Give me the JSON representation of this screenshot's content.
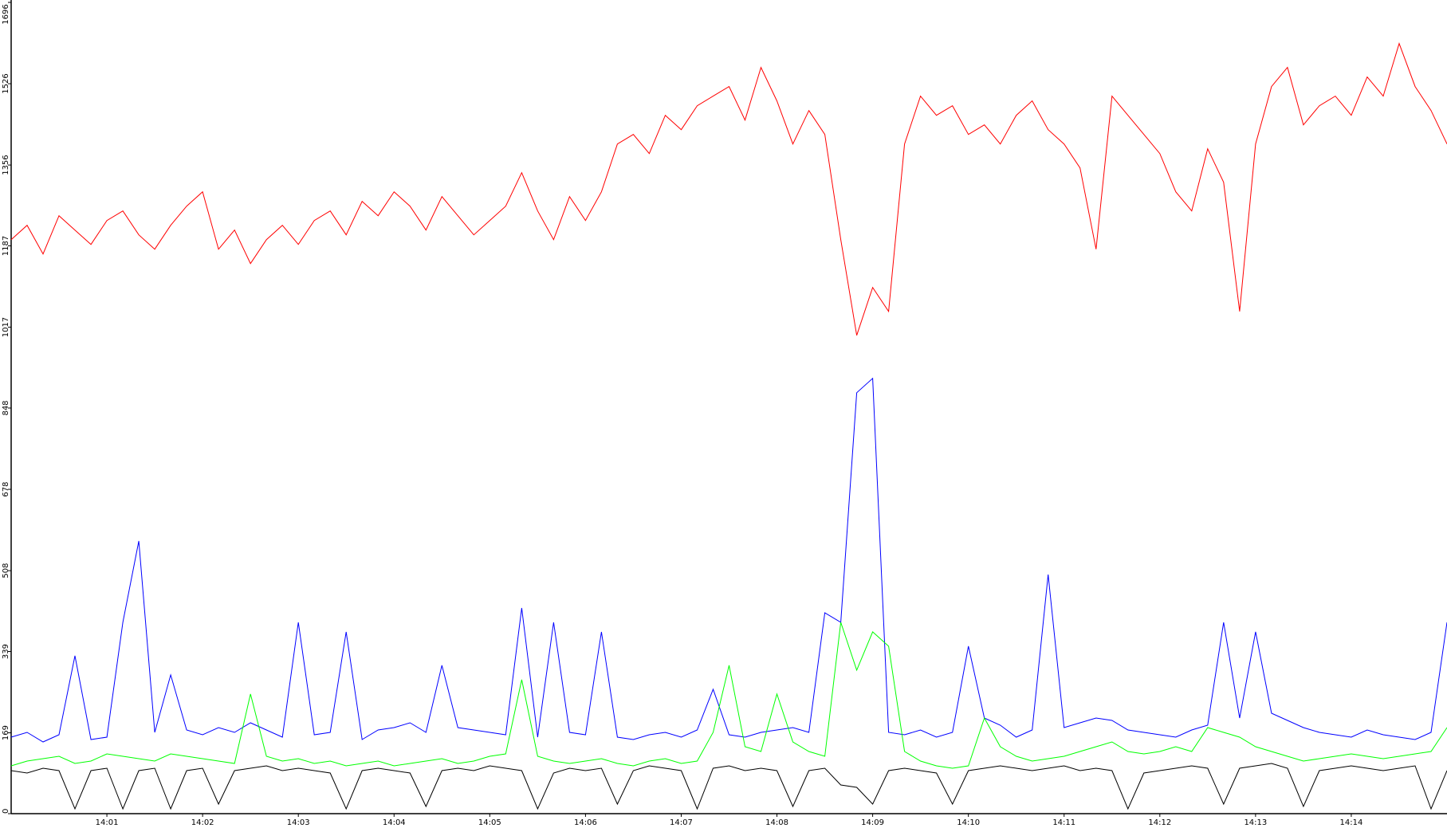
{
  "chart_data": {
    "type": "line",
    "categories": [
      null,
      null,
      null,
      null,
      null,
      null,
      "14:01",
      null,
      null,
      null,
      null,
      null,
      "14:02",
      null,
      null,
      null,
      null,
      null,
      "14:03",
      null,
      null,
      null,
      null,
      null,
      "14:04",
      null,
      null,
      null,
      null,
      null,
      "14:05",
      null,
      null,
      null,
      null,
      null,
      "14:06",
      null,
      null,
      null,
      null,
      null,
      "14:07",
      null,
      null,
      null,
      null,
      null,
      "14:08",
      null,
      null,
      null,
      null,
      null,
      "14:09",
      null,
      null,
      null,
      null,
      null,
      "14:10",
      null,
      null,
      null,
      null,
      null,
      "14:11",
      null,
      null,
      null,
      null,
      null,
      "14:12",
      null,
      null,
      null,
      null,
      null,
      "14:13",
      null,
      null,
      null,
      null,
      null,
      "14:14",
      null,
      null,
      null,
      null,
      null,
      null
    ],
    "series": [
      {
        "color": "#ff0000",
        "values": [
          1200,
          1230,
          1170,
          1250,
          1220,
          1190,
          1240,
          1260,
          1210,
          1180,
          1230,
          1270,
          1300,
          1180,
          1220,
          1150,
          1200,
          1230,
          1190,
          1240,
          1260,
          1210,
          1280,
          1250,
          1300,
          1270,
          1220,
          1290,
          1250,
          1210,
          1240,
          1270,
          1340,
          1260,
          1200,
          1290,
          1240,
          1300,
          1400,
          1420,
          1380,
          1460,
          1430,
          1480,
          1500,
          1520,
          1450,
          1560,
          1490,
          1400,
          1470,
          1420,
          1200,
          1000,
          1100,
          1050,
          1400,
          1500,
          1460,
          1480,
          1420,
          1440,
          1400,
          1460,
          1490,
          1430,
          1400,
          1350,
          1180,
          1500,
          1460,
          1420,
          1380,
          1300,
          1260,
          1390,
          1320,
          1050,
          1400,
          1520,
          1560,
          1440,
          1480,
          1500,
          1460,
          1540,
          1500,
          1610,
          1520,
          1470,
          1400
        ]
      },
      {
        "color": "#0000ff",
        "values": [
          160,
          170,
          150,
          165,
          330,
          155,
          160,
          400,
          570,
          170,
          290,
          175,
          165,
          180,
          170,
          190,
          175,
          160,
          400,
          165,
          170,
          380,
          155,
          175,
          180,
          190,
          170,
          310,
          180,
          175,
          170,
          165,
          430,
          160,
          400,
          170,
          165,
          380,
          160,
          155,
          165,
          170,
          160,
          175,
          260,
          165,
          160,
          170,
          175,
          180,
          170,
          420,
          400,
          880,
          910,
          170,
          165,
          175,
          160,
          170,
          350,
          200,
          185,
          160,
          175,
          500,
          180,
          190,
          200,
          195,
          175,
          170,
          165,
          160,
          175,
          185,
          400,
          200,
          380,
          210,
          195,
          180,
          170,
          165,
          160,
          175,
          165,
          160,
          155,
          170,
          400
        ]
      },
      {
        "color": "#00ff00",
        "values": [
          100,
          110,
          115,
          120,
          105,
          110,
          125,
          120,
          115,
          110,
          125,
          120,
          115,
          110,
          105,
          250,
          120,
          110,
          115,
          105,
          110,
          100,
          105,
          110,
          100,
          105,
          110,
          115,
          105,
          110,
          120,
          125,
          280,
          120,
          110,
          105,
          110,
          115,
          105,
          100,
          110,
          115,
          105,
          110,
          170,
          310,
          140,
          130,
          250,
          150,
          130,
          120,
          400,
          300,
          380,
          350,
          130,
          110,
          100,
          95,
          100,
          200,
          140,
          120,
          110,
          115,
          120,
          130,
          140,
          150,
          130,
          125,
          130,
          140,
          130,
          180,
          170,
          160,
          140,
          130,
          120,
          110,
          115,
          120,
          125,
          120,
          115,
          120,
          125,
          130,
          180
        ]
      },
      {
        "color": "#000000",
        "values": [
          90,
          85,
          95,
          90,
          10,
          90,
          95,
          10,
          90,
          95,
          10,
          90,
          95,
          20,
          90,
          95,
          100,
          90,
          95,
          90,
          85,
          10,
          90,
          95,
          90,
          85,
          15,
          90,
          95,
          90,
          100,
          95,
          90,
          10,
          85,
          95,
          90,
          95,
          20,
          90,
          100,
          95,
          90,
          10,
          95,
          100,
          90,
          95,
          90,
          15,
          90,
          95,
          60,
          55,
          20,
          90,
          95,
          90,
          85,
          20,
          90,
          95,
          100,
          95,
          90,
          95,
          100,
          90,
          95,
          90,
          10,
          85,
          90,
          95,
          100,
          95,
          20,
          95,
          100,
          105,
          95,
          15,
          90,
          95,
          100,
          95,
          90,
          95,
          100,
          10,
          90
        ]
      }
    ],
    "ylim": [
      0,
      1696
    ],
    "yticks": [
      0,
      169,
      339,
      508,
      678,
      848,
      1017,
      1187,
      1356,
      1526,
      1696
    ]
  }
}
